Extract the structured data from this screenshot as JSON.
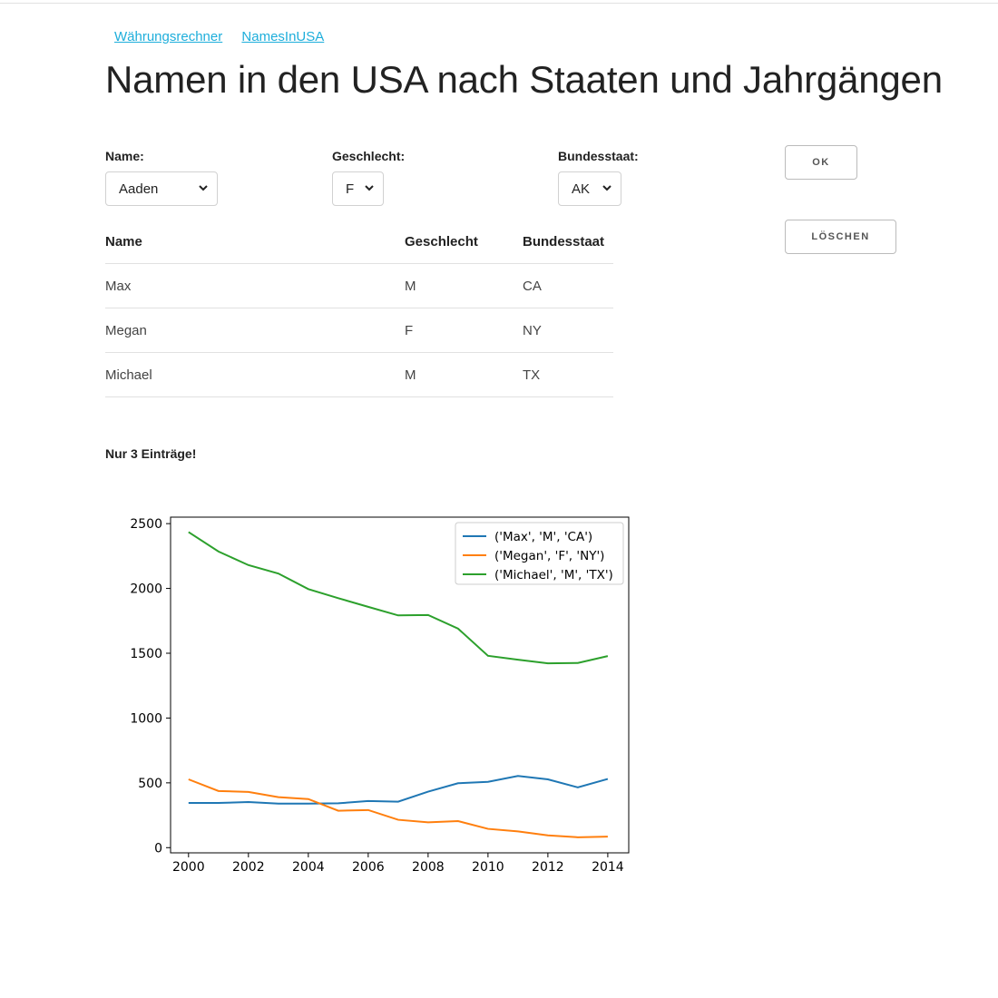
{
  "nav": {
    "links": [
      "Währungsrechner",
      "NamesInUSA"
    ]
  },
  "page": {
    "title": "Namen in den USA nach Staaten und Jahrgängen"
  },
  "form": {
    "name_label": "Name:",
    "name_value": "Aaden",
    "gender_label": "Geschlecht:",
    "gender_value": "F",
    "state_label": "Bundesstaat:",
    "state_value": "AK",
    "ok_label": "OK",
    "clear_label": "LÖSCHEN"
  },
  "table": {
    "headers": [
      "Name",
      "Geschlecht",
      "Bundesstaat"
    ],
    "rows": [
      [
        "Max",
        "M",
        "CA"
      ],
      [
        "Megan",
        "F",
        "NY"
      ],
      [
        "Michael",
        "M",
        "TX"
      ]
    ]
  },
  "note": "Nur 3 Einträge!",
  "chart_data": {
    "type": "line",
    "x": [
      2000,
      2001,
      2002,
      2003,
      2004,
      2005,
      2006,
      2007,
      2008,
      2009,
      2010,
      2011,
      2012,
      2013,
      2014
    ],
    "series": [
      {
        "name": "('Max', 'M', 'CA')",
        "color": "#1f77b4",
        "values": [
          345,
          345,
          352,
          340,
          340,
          342,
          360,
          355,
          432,
          497,
          508,
          553,
          527,
          465,
          530
        ]
      },
      {
        "name": "('Megan', 'F', 'NY')",
        "color": "#ff7f0e",
        "values": [
          527,
          437,
          430,
          390,
          375,
          285,
          290,
          215,
          195,
          205,
          145,
          125,
          95,
          80,
          85
        ]
      },
      {
        "name": "('Michael', 'M', 'TX')",
        "color": "#2ca02c",
        "values": [
          2435,
          2285,
          2180,
          2115,
          1995,
          1925,
          1858,
          1792,
          1795,
          1690,
          1480,
          1450,
          1422,
          1425,
          1478
        ]
      }
    ],
    "xticks": [
      "2000",
      "2002",
      "2004",
      "2006",
      "2008",
      "2010",
      "2012",
      "2014"
    ],
    "yticks": [
      "0",
      "500",
      "1000",
      "1500",
      "2000",
      "2500"
    ],
    "xlim": [
      1999.4,
      2014.7
    ],
    "ylim": [
      -40,
      2550
    ],
    "legend": "top-right",
    "grid": false
  }
}
